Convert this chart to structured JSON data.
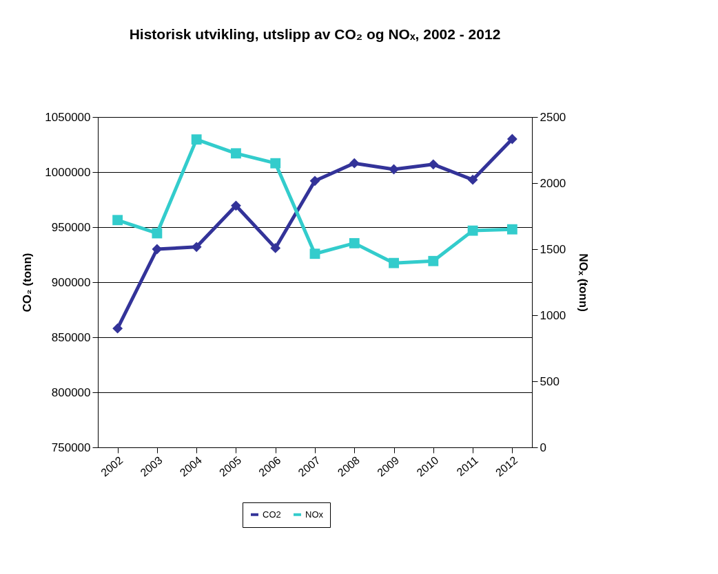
{
  "chart_data": {
    "type": "line",
    "title": "Historisk utvikling, utslipp av CO₂ og NOₓ, 2002 - 2012",
    "ylabel": "CO₂ (tonn)",
    "y2label": "NOₓ (tonn)",
    "categories": [
      "2002",
      "2003",
      "2004",
      "2005",
      "2006",
      "2007",
      "2008",
      "2009",
      "2010",
      "2011",
      "2012"
    ],
    "series": [
      {
        "name": "CO2",
        "color": "#333399",
        "marker": "diamond",
        "values": [
          858000,
          930000,
          932000,
          969500,
          931000,
          992000,
          1008000,
          1002500,
          1007000,
          993000,
          1030000
        ]
      },
      {
        "name": "NOx",
        "color": "#33cccc",
        "marker": "square",
        "axis": "y2",
        "values": [
          1720,
          1620,
          2330,
          2225,
          2150,
          1465,
          1545,
          1395,
          1410,
          1640,
          1650
        ]
      }
    ],
    "ylim": [
      750000,
      1050000
    ],
    "yticks": [
      750000,
      800000,
      850000,
      900000,
      950000,
      1000000,
      1050000
    ],
    "y2lim": [
      0,
      2500
    ],
    "y2ticks": [
      0,
      500,
      1000,
      1500,
      2000,
      2500
    ],
    "grid": "y",
    "legend": "bottom",
    "line_style": "solid"
  }
}
